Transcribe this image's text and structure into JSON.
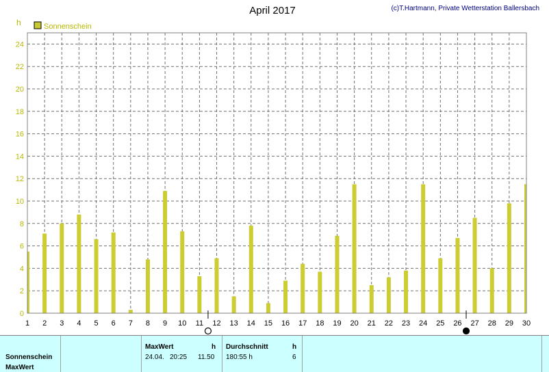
{
  "chart_data": {
    "type": "bar",
    "title": "April 2017",
    "credit": "(c)T.Hartmann, Private Wetterstation Ballersbach",
    "unit": "h",
    "legend": "Sonnenschein",
    "series_color": "#cccc33",
    "legend_color": "#c8c832",
    "grid": true,
    "ylim": [
      0,
      25
    ],
    "yticks": [
      0,
      2,
      4,
      6,
      8,
      10,
      12,
      14,
      16,
      18,
      20,
      22,
      24
    ],
    "xlim": [
      1,
      30
    ],
    "categories": [
      1,
      2,
      3,
      4,
      5,
      6,
      7,
      8,
      9,
      10,
      11,
      12,
      13,
      14,
      15,
      16,
      17,
      18,
      19,
      20,
      21,
      22,
      23,
      24,
      25,
      26,
      27,
      28,
      29,
      30
    ],
    "values": [
      5.5,
      7.1,
      8.0,
      8.8,
      6.6,
      7.2,
      0.3,
      4.8,
      10.9,
      7.3,
      3.3,
      4.9,
      1.5,
      7.8,
      0.9,
      2.9,
      4.4,
      3.7,
      6.9,
      11.5,
      2.5,
      3.2,
      3.8,
      11.5,
      4.9,
      6.7,
      8.5,
      4.0,
      9.8,
      11.5
    ],
    "moon_phases": [
      {
        "day": 11,
        "phase": "full"
      },
      {
        "day": 26,
        "phase": "new"
      }
    ]
  },
  "panel": {
    "row1_label": "Sonnenschein",
    "row2_label": "MaxWert",
    "maxwert": {
      "header": "MaxWert",
      "unit": "h",
      "date": "24.04.",
      "time": "20:25",
      "value": "11.50"
    },
    "durchschnitt": {
      "header": "Durchschnitt",
      "unit": "h",
      "value": "180:55 h",
      "count": "6"
    }
  }
}
